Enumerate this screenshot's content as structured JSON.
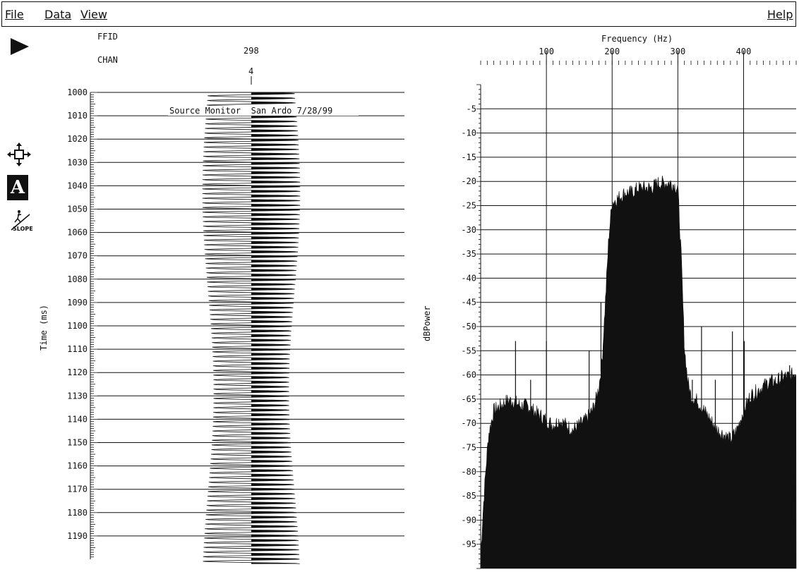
{
  "menubar": {
    "file": "File",
    "data": "Data",
    "view": "View",
    "help": "Help"
  },
  "toolbar": {
    "play_icon": "play-icon",
    "move_icon": "move-arrows-icon",
    "annotate_icon": "A",
    "slope_icon": "SLOPE"
  },
  "trace_panel": {
    "ffid_label": "FFID",
    "chan_label": "CHAN",
    "ffid_value": "298",
    "chan_value": "4",
    "annotation": "Source Monitor  San Ardo 7/28/99",
    "y_axis_label": "Time (ms)",
    "time_ticks": [
      "1000",
      "1010",
      "1020",
      "1030",
      "1040",
      "1050",
      "1060",
      "1070",
      "1080",
      "1090",
      "1100",
      "1110",
      "1120",
      "1130",
      "1140",
      "1150",
      "1160",
      "1170",
      "1180",
      "1190"
    ]
  },
  "chart_data": {
    "type": "area",
    "title": "",
    "xlabel": "Frequency (Hz)",
    "ylabel": "dBPower",
    "xlim": [
      0,
      480
    ],
    "ylim": [
      -100,
      0
    ],
    "x_ticks": [
      100,
      200,
      300,
      400
    ],
    "y_ticks": [
      -5,
      -10,
      -15,
      -20,
      -25,
      -30,
      -35,
      -40,
      -45,
      -50,
      -55,
      -60,
      -65,
      -70,
      -75,
      -80,
      -85,
      -90,
      -95
    ],
    "grid": true,
    "x": [
      0,
      4,
      8,
      12,
      20,
      30,
      40,
      50,
      60,
      70,
      80,
      90,
      100,
      110,
      120,
      130,
      140,
      150,
      160,
      170,
      175,
      180,
      185,
      190,
      195,
      200,
      210,
      220,
      230,
      240,
      250,
      260,
      270,
      280,
      290,
      300,
      305,
      310,
      315,
      320,
      330,
      340,
      350,
      360,
      370,
      380,
      390,
      400,
      410,
      420,
      430,
      440,
      450,
      460,
      470,
      480
    ],
    "values": [
      -98,
      -88,
      -80,
      -73,
      -68,
      -67,
      -66,
      -66,
      -67,
      -67,
      -68,
      -69,
      -70,
      -71,
      -70,
      -71,
      -72,
      -71,
      -70,
      -68,
      -66,
      -63,
      -57,
      -45,
      -32,
      -25,
      -24,
      -23,
      -23,
      -22,
      -22,
      -22,
      -21,
      -21,
      -21,
      -22,
      -36,
      -55,
      -62,
      -65,
      -66,
      -68,
      -70,
      -72,
      -73,
      -74,
      -72,
      -68,
      -65,
      -64,
      -63,
      -62,
      -62,
      -61,
      -61,
      -60
    ],
    "spikes": [
      {
        "x": 53,
        "y": -53
      },
      {
        "x": 76,
        "y": -61
      },
      {
        "x": 100,
        "y": -53
      },
      {
        "x": 165,
        "y": -55
      },
      {
        "x": 183,
        "y": -45
      },
      {
        "x": 322,
        "y": -61
      },
      {
        "x": 336,
        "y": -50
      },
      {
        "x": 357,
        "y": -61
      },
      {
        "x": 383,
        "y": -51
      },
      {
        "x": 401,
        "y": -53
      },
      {
        "x": 470,
        "y": -58
      }
    ]
  }
}
